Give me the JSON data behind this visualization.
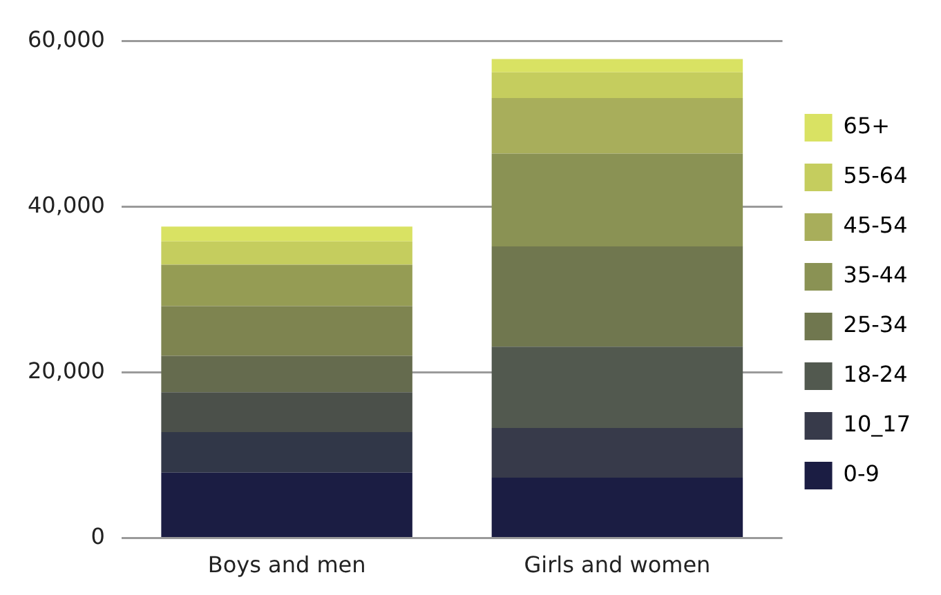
{
  "chart_data": {
    "type": "bar",
    "stacked": true,
    "categories": [
      "Boys and men",
      "Girls and women"
    ],
    "ylim": [
      0,
      60000
    ],
    "yticks": [
      {
        "value": 0,
        "label": "0"
      },
      {
        "value": 20000,
        "label": "20,000"
      },
      {
        "value": 40000,
        "label": "40,000"
      },
      {
        "value": 60000,
        "label": "60,000"
      }
    ],
    "grid": "y",
    "legend": "right",
    "series": [
      {
        "name": "0-9",
        "color": "#1b1d43",
        "colors": [
          "#1b1d43",
          "#1b1d43"
        ],
        "values": [
          7900,
          7300
        ]
      },
      {
        "name": "10_17",
        "color": "#373a4a",
        "colors": [
          "#313748",
          "#373a4a"
        ],
        "values": [
          4900,
          6000
        ]
      },
      {
        "name": "18-24",
        "color": "#52594f",
        "colors": [
          "#4b504a",
          "#52594f"
        ],
        "values": [
          4800,
          9800
        ]
      },
      {
        "name": "25-34",
        "color": "#70774f",
        "colors": [
          "#656b4e",
          "#70774f"
        ],
        "values": [
          4400,
          12100
        ]
      },
      {
        "name": "35-44",
        "color": "#8a9254",
        "colors": [
          "#7e8450",
          "#8a9254"
        ],
        "values": [
          6000,
          11200
        ]
      },
      {
        "name": "45-54",
        "color": "#a8ae5b",
        "colors": [
          "#959c54",
          "#a8ae5b"
        ],
        "values": [
          5000,
          6700
        ]
      },
      {
        "name": "55-64",
        "color": "#c5cd5e",
        "colors": [
          "#c5cd5e",
          "#c5cd5e"
        ],
        "values": [
          2800,
          3100
        ]
      },
      {
        "name": "65+",
        "color": "#d9e263",
        "colors": [
          "#d9e263",
          "#d9e263"
        ],
        "values": [
          1800,
          1600
        ]
      }
    ]
  }
}
